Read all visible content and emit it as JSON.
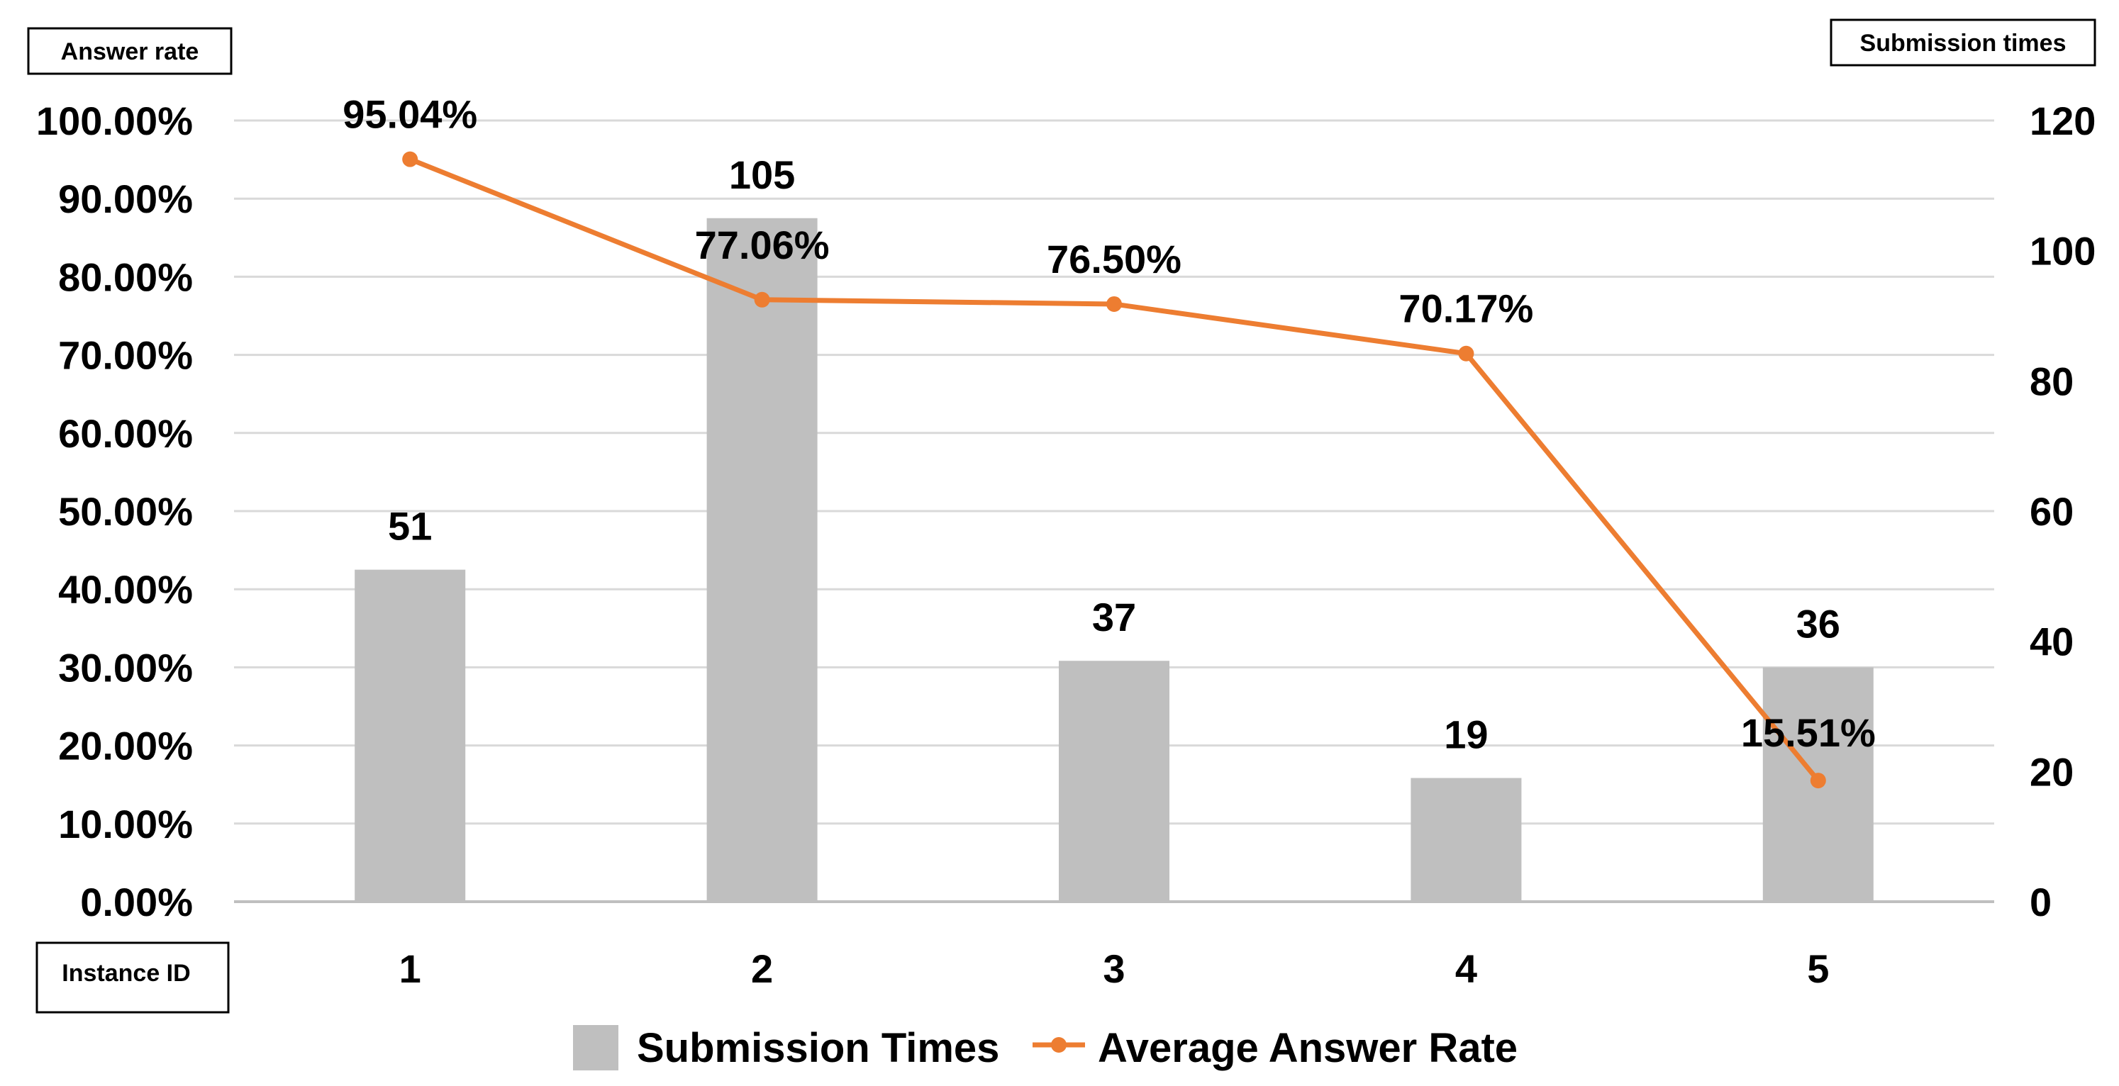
{
  "chart_data": {
    "type": "bar-line",
    "categories": [
      "1",
      "2",
      "3",
      "4",
      "5"
    ],
    "x_axis_title": "Instance ID",
    "y_left_title": "Answer rate",
    "y_right_title": "Submission times",
    "y_left": {
      "min": 0,
      "max": 100,
      "ticks": [
        "0.00%",
        "10.00%",
        "20.00%",
        "30.00%",
        "40.00%",
        "50.00%",
        "60.00%",
        "70.00%",
        "80.00%",
        "90.00%",
        "100.00%"
      ]
    },
    "y_right": {
      "min": 0,
      "max": 120,
      "ticks": [
        "0",
        "20",
        "40",
        "60",
        "80",
        "100",
        "120"
      ]
    },
    "grid": true,
    "legend_position": "bottom",
    "series": [
      {
        "name": "Submission Times",
        "type": "bar",
        "axis": "right",
        "color": "#bfbfbf",
        "values": [
          51,
          105,
          37,
          19,
          36
        ],
        "labels": [
          "51",
          "105",
          "37",
          "19",
          "36"
        ]
      },
      {
        "name": "Average Answer Rate",
        "type": "line",
        "axis": "left",
        "color": "#ed7d31",
        "values": [
          95.04,
          77.06,
          76.5,
          70.17,
          15.51
        ],
        "labels": [
          "95.04%",
          "77.06%",
          "76.50%",
          "70.17%",
          "15.51%"
        ]
      }
    ]
  }
}
